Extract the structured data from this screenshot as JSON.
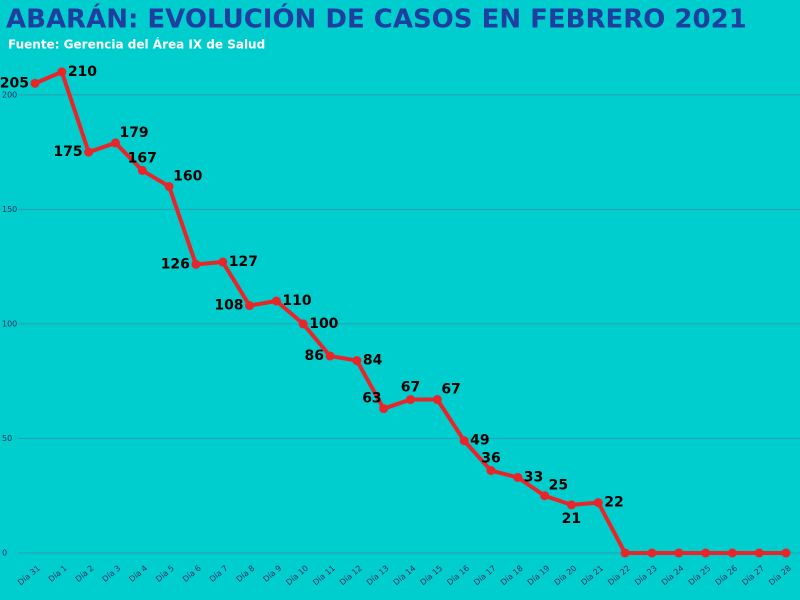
{
  "chart_data": {
    "type": "line",
    "title": "ABARÁN: EVOLUCIÓN DE CASOS EN FEBRERO 2021",
    "subtitle": "Fuente: Gerencia del Área IX de Salud",
    "categories": [
      "Día 31",
      "Día 1",
      "Día 2",
      "Día 3",
      "Día 4",
      "Día 5",
      "Día 6",
      "Día 7",
      "Día 8",
      "Día 9",
      "Día 10",
      "Día 11",
      "Día 12",
      "Día 13",
      "Día 14",
      "Día 15",
      "Día 16",
      "Día 17",
      "Día 18",
      "Día 19",
      "Día 20",
      "Día 21",
      "Día 22",
      "Día 23",
      "Día 24",
      "Día 25",
      "Día 26",
      "Día 27",
      "Día 28"
    ],
    "values": [
      205,
      210,
      175,
      179,
      167,
      160,
      126,
      127,
      108,
      110,
      100,
      86,
      84,
      63,
      67,
      67,
      49,
      36,
      33,
      25,
      21,
      22,
      0,
      0,
      0,
      0,
      0,
      0,
      0
    ],
    "color": "#e8262a",
    "ylim": [
      0,
      220
    ],
    "yticks": [
      0,
      50,
      100,
      150,
      200
    ],
    "grid": true
  }
}
